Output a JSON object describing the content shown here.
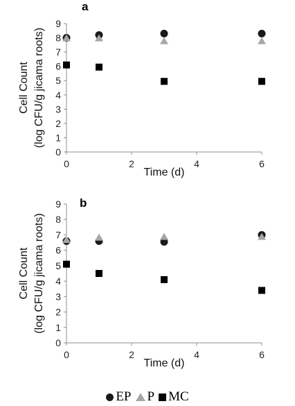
{
  "chart_data": [
    {
      "type": "scatter",
      "panel_label": "a",
      "title": "",
      "xlabel": "Time (d)",
      "ylabel_lines": [
        "Cell Count",
        "(log CFU/g jicama roots)"
      ],
      "xlim": [
        0,
        6
      ],
      "ylim": [
        0,
        9
      ],
      "xticks": [
        0,
        2,
        4,
        6
      ],
      "yticks": [
        0,
        1,
        2,
        3,
        4,
        5,
        6,
        7,
        8,
        9
      ],
      "grid": false,
      "series": [
        {
          "name": "EP",
          "marker": "circle",
          "color": "#1a1a1a",
          "x": [
            0,
            1,
            3,
            6
          ],
          "y": [
            8.0,
            8.2,
            8.3,
            8.3
          ]
        },
        {
          "name": "P",
          "marker": "triangle",
          "color": "#a6a6a6",
          "x": [
            0,
            1,
            3,
            6
          ],
          "y": [
            8.0,
            8.0,
            7.8,
            7.8
          ]
        },
        {
          "name": "MC",
          "marker": "square",
          "color": "#000000",
          "x": [
            0,
            1,
            3,
            6
          ],
          "y": [
            6.1,
            5.95,
            4.95,
            4.95
          ]
        }
      ]
    },
    {
      "type": "scatter",
      "panel_label": "b",
      "title": "",
      "xlabel": "Time (d)",
      "ylabel_lines": [
        "Cell Count",
        "(log CFU/g jicama roots)"
      ],
      "xlim": [
        0,
        6
      ],
      "ylim": [
        0,
        9
      ],
      "xticks": [
        0,
        2,
        4,
        6
      ],
      "yticks": [
        0,
        1,
        2,
        3,
        4,
        5,
        6,
        7,
        8,
        9
      ],
      "grid": false,
      "series": [
        {
          "name": "EP",
          "marker": "circle",
          "color": "#1a1a1a",
          "x": [
            0,
            1,
            3,
            6
          ],
          "y": [
            6.6,
            6.6,
            6.55,
            7.0
          ]
        },
        {
          "name": "P",
          "marker": "triangle",
          "color": "#a6a6a6",
          "x": [
            0,
            1,
            3,
            6
          ],
          "y": [
            6.7,
            6.85,
            6.9,
            6.9
          ]
        },
        {
          "name": "MC",
          "marker": "square",
          "color": "#000000",
          "x": [
            0,
            1,
            3,
            6
          ],
          "y": [
            5.1,
            4.5,
            4.1,
            3.4
          ]
        }
      ]
    }
  ],
  "legend": {
    "placement": "bottom-center",
    "items": [
      {
        "label": "EP",
        "icon": "circle-icon"
      },
      {
        "label": "P",
        "icon": "triangle-icon"
      },
      {
        "label": "MC",
        "icon": "square-icon"
      }
    ]
  }
}
